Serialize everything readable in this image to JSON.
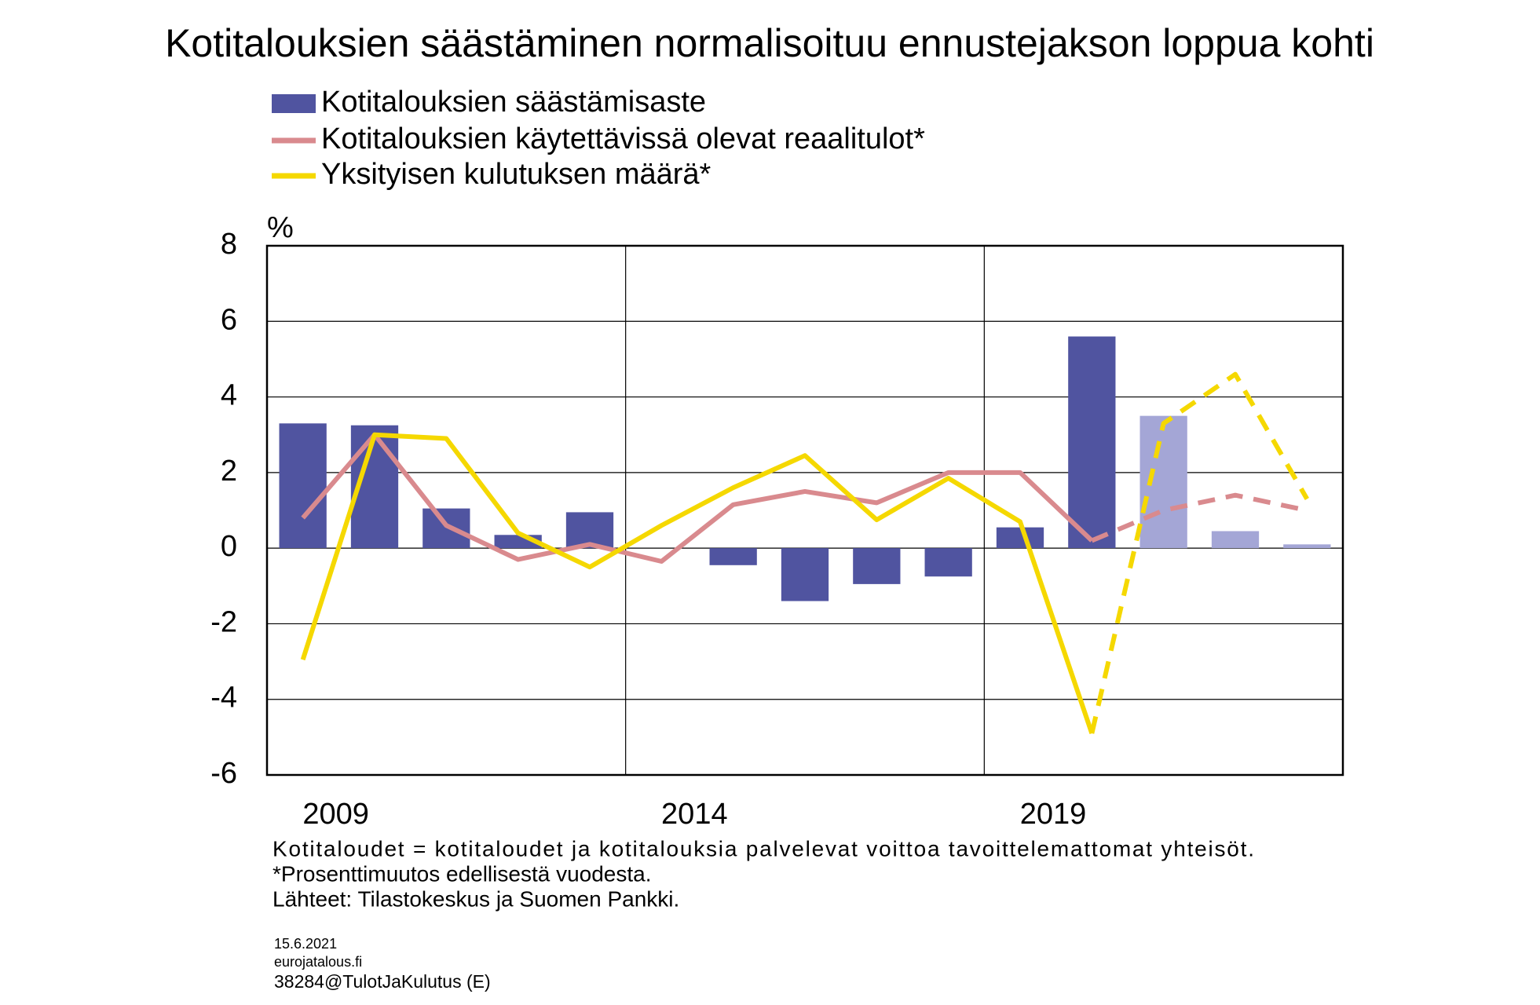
{
  "chart_data": {
    "type": "bar-line",
    "title": "Kotitalouksien säästäminen normalisoituu ennustejakson loppua kohti",
    "y_unit": "%",
    "categories": [
      "2009",
      null,
      null,
      null,
      null,
      "2014",
      null,
      null,
      null,
      null,
      "2019",
      null,
      null,
      null,
      null
    ],
    "forecast_from": 12,
    "bars": {
      "name": "Kotitalouksien säästämisaste",
      "color": "#5054a0",
      "forecast_color": "#a4a6d6",
      "values": [
        3.3,
        3.25,
        1.05,
        0.35,
        0.95,
        0,
        -0.45,
        -1.4,
        -0.95,
        -0.75,
        0.55,
        5.6,
        3.5,
        0.45,
        0.1
      ]
    },
    "series": [
      {
        "name": "Kotitalouksien käytettävissä olevat reaalitulot*",
        "color": "#d98a8e",
        "values": [
          0.8,
          3.0,
          0.6,
          -0.3,
          0.1,
          -0.35,
          1.15,
          1.5,
          1.2,
          2.0,
          2.0,
          0.2,
          1.0,
          1.4,
          1.0
        ]
      },
      {
        "name": "Yksityisen kulutuksen määrä*",
        "color": "#f5d800",
        "values": [
          -2.95,
          3.0,
          2.9,
          0.4,
          -0.5,
          0.6,
          1.6,
          2.45,
          0.75,
          1.85,
          0.7,
          -4.9,
          3.3,
          4.6,
          1.3
        ]
      }
    ],
    "ylim": [
      -6,
      8
    ],
    "yticks": [
      -6,
      -4,
      -2,
      0,
      2,
      4,
      6,
      8
    ],
    "grid": true,
    "notes": [
      "Kotitaloudet = kotitaloudet ja kotitalouksia palvelevat voittoa tavoittelemattomat yhteisöt.",
      "*Prosenttimuutos edellisestä vuodesta.",
      "Lähteet: Tilastokeskus ja Suomen Pankki."
    ],
    "date": "15.6.2021",
    "site": "eurojatalous.fi",
    "code": "38284@TulotJaKulutus (E)"
  }
}
